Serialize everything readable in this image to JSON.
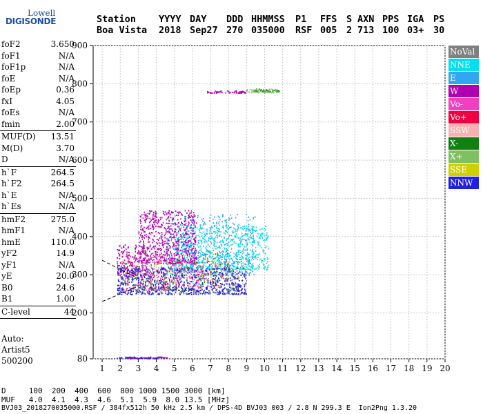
{
  "logo": {
    "line1": "Lowell",
    "line2": "DIGISONDE"
  },
  "header": {
    "labels": [
      "Station",
      "YYYY",
      "DAY",
      "DDD",
      "HHMMSS",
      "P1",
      "FFS",
      "S",
      "AXN",
      "PPS",
      "IGA",
      "PS"
    ],
    "values": [
      "Boa Vista",
      "2018",
      "Sep27",
      "270",
      "035000",
      "RSF",
      "005",
      "2",
      "713",
      "100",
      "03+",
      "30"
    ]
  },
  "params": [
    {
      "name": "foF2",
      "value": "3.650"
    },
    {
      "name": "foF1",
      "value": "N/A"
    },
    {
      "name": "foF1p",
      "value": "N/A"
    },
    {
      "name": "foE",
      "value": "N/A"
    },
    {
      "name": "foEp",
      "value": "0.36"
    },
    {
      "name": "fxI",
      "value": "4.05"
    },
    {
      "name": "foEs",
      "value": "N/A"
    },
    {
      "name": "fmin",
      "value": "2.00",
      "sep": true
    },
    {
      "name": "MUF(D)",
      "value": "13.51"
    },
    {
      "name": "M(D)",
      "value": "3.70"
    },
    {
      "name": "D",
      "value": "N/A",
      "sep": true
    },
    {
      "name": "h`F",
      "value": "264.5"
    },
    {
      "name": "h`F2",
      "value": "264.5"
    },
    {
      "name": "h`E",
      "value": "N/A"
    },
    {
      "name": "h`Es",
      "value": "N/A",
      "sep": true
    },
    {
      "name": "hmF2",
      "value": "275.0"
    },
    {
      "name": "hmF1",
      "value": "N/A"
    },
    {
      "name": "hmE",
      "value": "110.0"
    },
    {
      "name": "yF2",
      "value": "14.9"
    },
    {
      "name": "yF1",
      "value": "N/A"
    },
    {
      "name": "yE",
      "value": "20.0"
    },
    {
      "name": "B0",
      "value": "24.6"
    },
    {
      "name": "B1",
      "value": "1.00",
      "sep": true
    },
    {
      "name": "C-level",
      "value": "44",
      "sep": true
    }
  ],
  "auto": {
    "l1": "Auto:",
    "l2": "Artist5",
    "l3": "500200"
  },
  "legend": [
    {
      "label": "NoVal",
      "color": "#808080"
    },
    {
      "label": "NNE",
      "color": "#00e0f0"
    },
    {
      "label": "E",
      "color": "#30a8f0"
    },
    {
      "label": "W",
      "color": "#b000b0"
    },
    {
      "label": "Vo-",
      "color": "#f040c0"
    },
    {
      "label": "Vo+",
      "color": "#f00040"
    },
    {
      "label": "SSW",
      "color": "#f8b0b0"
    },
    {
      "label": "X-",
      "color": "#108010"
    },
    {
      "label": "X+",
      "color": "#80c060"
    },
    {
      "label": "SSE",
      "color": "#d0d000"
    },
    {
      "label": "NNW",
      "color": "#2020e0"
    }
  ],
  "chart_data": {
    "type": "scatter",
    "title": "",
    "xlabel": "",
    "ylabel": "",
    "xlim": [
      0.5,
      20
    ],
    "ylim": [
      80,
      900
    ],
    "x_ticks": [
      1,
      2,
      3,
      4,
      5,
      6,
      7,
      8,
      9,
      10,
      11,
      12,
      13,
      14,
      15,
      16,
      17,
      18,
      19,
      20
    ],
    "y_ticks": [
      80,
      200,
      300,
      400,
      500,
      600,
      700,
      800,
      900
    ],
    "grid": true,
    "legend_position": "right",
    "clusters": [
      {
        "series": "E",
        "x": [
          4.5,
          9.5
        ],
        "y": [
          300,
          460
        ],
        "n": 600
      },
      {
        "series": "NNE",
        "x": [
          5.0,
          10.2
        ],
        "y": [
          315,
          430
        ],
        "n": 600
      },
      {
        "series": "W",
        "x": [
          3.0,
          6.2
        ],
        "y": [
          330,
          470
        ],
        "n": 650
      },
      {
        "series": "W",
        "x": [
          1.8,
          3.5
        ],
        "y": [
          300,
          380
        ],
        "n": 200
      },
      {
        "series": "W",
        "x": [
          6.8,
          9.0
        ],
        "y": [
          777,
          783
        ],
        "n": 60
      },
      {
        "series": "Vo-",
        "x": [
          2.2,
          6.5
        ],
        "y": [
          260,
          360
        ],
        "n": 250
      },
      {
        "series": "Vo+",
        "x": [
          2.0,
          8.0
        ],
        "y": [
          265,
          340
        ],
        "n": 120
      },
      {
        "series": "NNW",
        "x": [
          1.8,
          9.0
        ],
        "y": [
          250,
          320
        ],
        "n": 700
      },
      {
        "series": "NoVal",
        "x": [
          2.0,
          9.0
        ],
        "y": [
          250,
          340
        ],
        "n": 250
      },
      {
        "series": "X-",
        "x": [
          2.0,
          8.5
        ],
        "y": [
          260,
          360
        ],
        "n": 120
      },
      {
        "series": "X-",
        "x": [
          9.4,
          10.8
        ],
        "y": [
          780,
          788
        ],
        "n": 40
      },
      {
        "series": "X+",
        "x": [
          9.0,
          10.8
        ],
        "y": [
          778,
          788
        ],
        "n": 50
      },
      {
        "series": "SSW",
        "x": [
          2.0,
          9.0
        ],
        "y": [
          270,
          340
        ],
        "n": 100
      },
      {
        "series": "SSE",
        "x": [
          3.0,
          9.0
        ],
        "y": [
          280,
          380
        ],
        "n": 40
      },
      {
        "series": "NNW",
        "x": [
          1.8,
          4.6
        ],
        "y": [
          82,
          86
        ],
        "n": 60
      },
      {
        "series": "W",
        "x": [
          1.8,
          4.6
        ],
        "y": [
          82,
          86
        ],
        "n": 30
      }
    ],
    "dashed_lines": [
      {
        "x": [
          1.0,
          3.0
        ],
        "y": [
          338,
          290
        ]
      },
      {
        "x": [
          1.0,
          3.0
        ],
        "y": [
          230,
          270
        ]
      }
    ]
  },
  "footer": {
    "d_label": "D",
    "d_values": "100  200  400  600  800 1000 1500 3000 [km]",
    "muf_label": "MUF",
    "muf_values": "4.0  4.1  4.3  4.6  5.1  5.9  8.0 13.5 [MHz]",
    "file_line": "BVJ03_2018270035000.RSF / 384fx512h 50 kHz 2.5 km / DPS-4D BVJ03 003 / 2.8 N 299.3 E  Ion2Png 1.3.20"
  }
}
